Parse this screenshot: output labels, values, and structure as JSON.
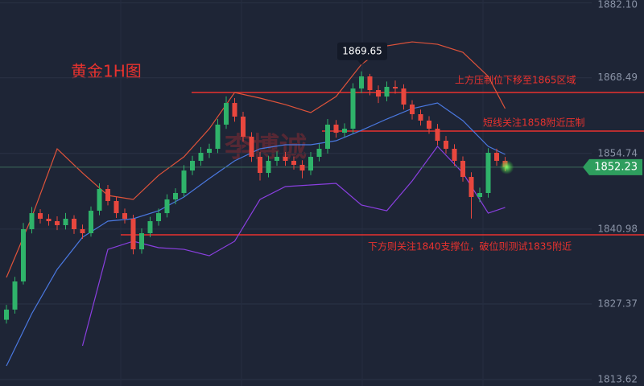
{
  "chart_data": {
    "type": "candlestick",
    "title": "黄金1H图",
    "watermark": "李博诚",
    "up_color": "#2fb36a",
    "down_color": "#e8473e",
    "open": [
      1824.5,
      1826.34,
      1831.46,
      1840.96,
      1843.88,
      1842.86,
      1842.42,
      1841.69,
      1842.86,
      1840.96,
      1840.23,
      1844.32,
      1848.27,
      1846.08,
      1843.88,
      1842.86,
      1837.3,
      1840.23,
      1842.42,
      1843.88,
      1846.37,
      1847.54,
      1851.63,
      1853.39,
      1854.85,
      1855.58,
      1859.97,
      1863.91,
      1861.43,
      1857.77,
      1854.12,
      1851.19,
      1853.39,
      1854.12,
      1853.39,
      1852.66,
      1851.63,
      1854.12,
      1855.58,
      1859.97,
      1858.5,
      1859.23,
      1866.54,
      1868.74,
      1866.25,
      1865.08,
      1866.84,
      1866.54,
      1863.62,
      1861.87,
      1860.7,
      1859.23,
      1857.04,
      1855.58,
      1853.39,
      1850.46,
      1846.81,
      1847.54,
      1854.85,
      1853.39
    ],
    "high": [
      1827.2,
      1832.3,
      1842.1,
      1845.0,
      1844.6,
      1843.7,
      1843.3,
      1843.9,
      1843.5,
      1841.8,
      1845.1,
      1849.3,
      1849.0,
      1846.9,
      1844.7,
      1843.6,
      1841.1,
      1843.2,
      1844.7,
      1847.3,
      1848.4,
      1852.6,
      1854.3,
      1855.9,
      1856.5,
      1861.0,
      1865.1,
      1864.8,
      1862.3,
      1858.6,
      1855.0,
      1854.3,
      1855.1,
      1855.0,
      1854.2,
      1853.5,
      1855.0,
      1856.5,
      1861.0,
      1860.8,
      1860.2,
      1867.5,
      1869.65,
      1869.2,
      1867.1,
      1867.8,
      1868.0,
      1867.3,
      1864.4,
      1862.7,
      1861.5,
      1860.1,
      1857.9,
      1856.4,
      1854.2,
      1851.3,
      1848.5,
      1855.7,
      1855.6,
      1854.1
    ],
    "low": [
      1823.8,
      1825.6,
      1830.9,
      1840.2,
      1842.0,
      1841.6,
      1840.8,
      1840.9,
      1840.1,
      1839.2,
      1839.6,
      1843.5,
      1845.3,
      1843.0,
      1842.0,
      1836.4,
      1836.5,
      1839.5,
      1841.6,
      1843.1,
      1845.5,
      1846.8,
      1850.8,
      1852.5,
      1853.9,
      1854.8,
      1859.2,
      1860.5,
      1856.9,
      1853.2,
      1849.8,
      1850.4,
      1852.5,
      1852.5,
      1851.8,
      1850.2,
      1850.8,
      1853.3,
      1854.7,
      1857.6,
      1857.7,
      1858.4,
      1865.7,
      1865.3,
      1863.9,
      1864.2,
      1865.6,
      1862.7,
      1860.9,
      1859.8,
      1858.3,
      1856.2,
      1854.7,
      1852.5,
      1849.6,
      1842.9,
      1845.9,
      1846.7,
      1852.5,
      1851.5
    ],
    "close": [
      1826.34,
      1831.46,
      1840.96,
      1843.88,
      1842.86,
      1842.42,
      1841.69,
      1842.86,
      1840.96,
      1840.23,
      1844.32,
      1848.27,
      1846.08,
      1843.88,
      1842.86,
      1837.3,
      1840.23,
      1842.42,
      1843.88,
      1846.37,
      1847.54,
      1851.63,
      1853.39,
      1854.85,
      1855.58,
      1859.97,
      1863.91,
      1861.43,
      1857.77,
      1854.12,
      1851.19,
      1853.39,
      1854.12,
      1853.39,
      1852.66,
      1851.63,
      1854.12,
      1855.58,
      1859.97,
      1858.5,
      1859.23,
      1866.54,
      1868.74,
      1866.25,
      1865.08,
      1866.84,
      1866.54,
      1863.62,
      1861.87,
      1860.7,
      1859.23,
      1857.04,
      1855.58,
      1853.39,
      1850.46,
      1846.81,
      1847.54,
      1854.85,
      1853.39,
      1852.23
    ],
    "lines": [
      {
        "color": "#e0533a",
        "x": [
          0,
          3,
          6,
          9,
          12,
          15,
          18,
          21,
          24,
          27,
          30,
          33,
          36,
          39,
          42,
          45,
          48,
          51,
          54,
          57,
          59
        ],
        "values": [
          1832.19,
          1843.15,
          1855.58,
          1851.19,
          1847.1,
          1846.37,
          1850.75,
          1854.12,
          1859.23,
          1865.81,
          1864.79,
          1863.62,
          1862.16,
          1865.08,
          1870.93,
          1874.29,
          1875.02,
          1874.58,
          1873.12,
          1868.74,
          1862.89
        ]
      },
      {
        "color": "#4a78e0",
        "x": [
          0,
          3,
          6,
          9,
          12,
          15,
          18,
          21,
          24,
          27,
          30,
          33,
          36,
          39,
          42,
          45,
          48,
          51,
          54,
          57,
          59
        ],
        "values": [
          1816.11,
          1825.61,
          1833.65,
          1839.5,
          1842.42,
          1842.86,
          1844.32,
          1846.81,
          1850.17,
          1853.39,
          1855.58,
          1856.31,
          1856.31,
          1857.04,
          1858.94,
          1860.99,
          1862.89,
          1863.91,
          1860.7,
          1856.02,
          1854.56
        ]
      },
      {
        "color": "#8a3fe0",
        "x": [
          9,
          12,
          15,
          18,
          21,
          24,
          27,
          30,
          33,
          36,
          39,
          42,
          45,
          48,
          51,
          54,
          57,
          59
        ],
        "values": [
          1819.76,
          1837.3,
          1838.77,
          1837.6,
          1837.3,
          1836.13,
          1838.77,
          1846.37,
          1848.71,
          1849.0,
          1849.29,
          1845.35,
          1844.32,
          1849.73,
          1856.02,
          1851.19,
          1843.88,
          1844.91
        ]
      }
    ],
    "hlines": [
      {
        "value": 1865.81,
        "label": "上方压制位下移至1865区域",
        "color": "#e8322e"
      },
      {
        "value": 1858.8,
        "label": "短线关注1858附近压制",
        "color": "#e8322e"
      },
      {
        "value": 1839.94,
        "label": "下方则关注1840支撑位，破位则测试1835附近",
        "color": "#e8322e"
      }
    ],
    "ylim": [
      1812.45,
      1882.63
    ],
    "yticks": [
      1813.62,
      1827.37,
      1840.98,
      1854.74,
      1868.49,
      {
        "value": 1882.1,
        "label": "1882.10"
      }
    ],
    "grid": true
  }
}
